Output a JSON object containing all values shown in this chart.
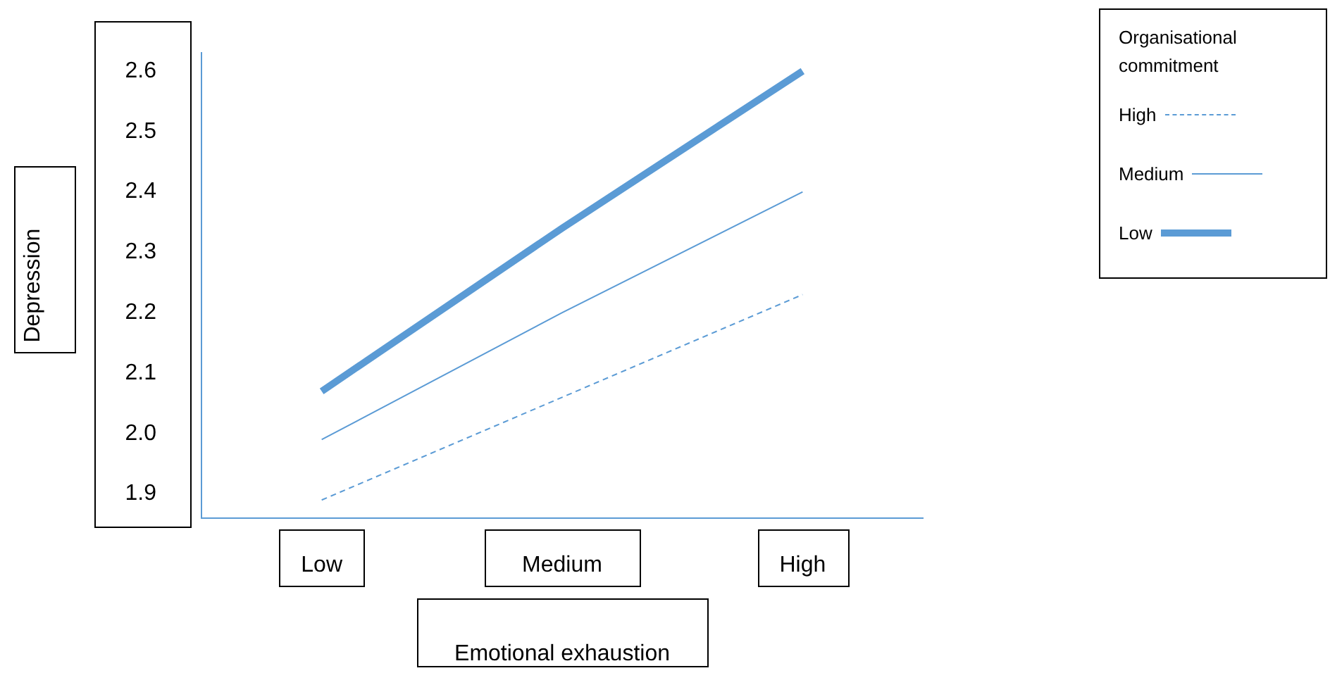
{
  "chart_data": {
    "type": "line",
    "xlabel": "Emotional exhaustion",
    "ylabel": "Depression",
    "legend_title": "Organisational commitment",
    "categories": [
      "Low",
      "Medium",
      "High"
    ],
    "series": [
      {
        "name": "High",
        "color": "#5b9bd5",
        "values": [
          1.89,
          2.06,
          2.23
        ],
        "line_style": "dashed"
      },
      {
        "name": "Medium",
        "color": "#5b9bd5",
        "values": [
          1.99,
          2.2,
          2.4
        ],
        "line_style": "solid"
      },
      {
        "name": "Low",
        "color": "#5b9bd5",
        "values": [
          2.07,
          2.34,
          2.6
        ],
        "line_style": "solid"
      }
    ],
    "ylim": [
      1.86,
      2.63
    ],
    "yticks": [
      1.9,
      {
        "value": 2,
        "label": "2.0"
      },
      2.1,
      2.2,
      2.3,
      2.4,
      2.5,
      2.6
    ],
    "grid": false,
    "legend": "top right",
    "marker": "none"
  }
}
